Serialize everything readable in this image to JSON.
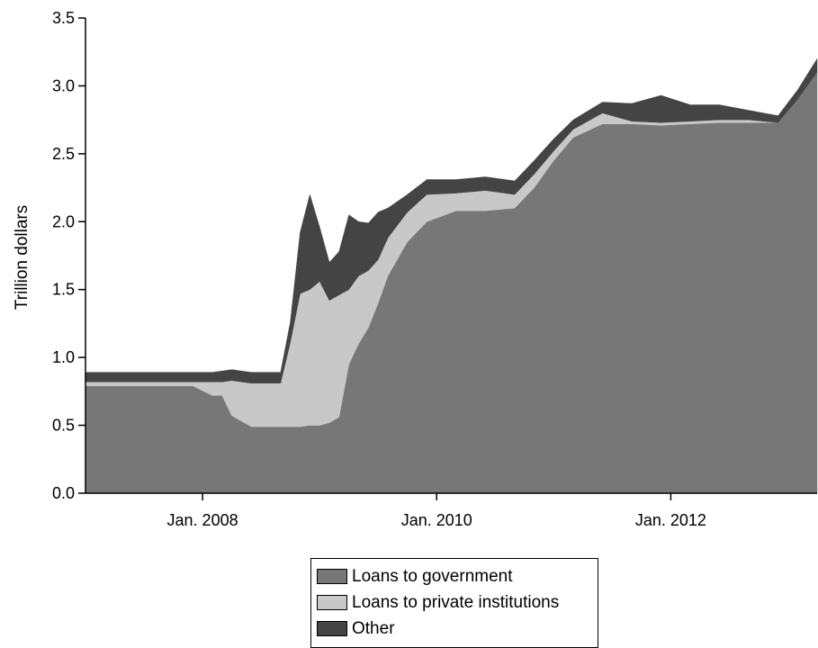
{
  "chart_data": {
    "type": "area",
    "stacked": true,
    "title": "",
    "ylabel": "Trillion dollars",
    "xlabel": "",
    "ylim": [
      0,
      3.5
    ],
    "xlim": [
      "2007-01",
      "2013-04"
    ],
    "yticks": [
      "0.0",
      "0.5",
      "1.0",
      "1.5",
      "2.0",
      "2.5",
      "3.0",
      "3.5"
    ],
    "xticks": [
      {
        "label": "Jan. 2008",
        "x": "2008-01"
      },
      {
        "label": "Jan. 2010",
        "x": "2010-01"
      },
      {
        "label": "Jan. 2012",
        "x": "2012-01"
      }
    ],
    "x": [
      "2007-01",
      "2007-06",
      "2007-12",
      "2008-02",
      "2008-03",
      "2008-04",
      "2008-06",
      "2008-09",
      "2008-10",
      "2008-11",
      "2008-12",
      "2009-01",
      "2009-02",
      "2009-03",
      "2009-04",
      "2009-05",
      "2009-06",
      "2009-07",
      "2009-08",
      "2009-10",
      "2009-12",
      "2010-03",
      "2010-06",
      "2010-09",
      "2010-11",
      "2011-01",
      "2011-03",
      "2011-06",
      "2011-09",
      "2011-12",
      "2012-03",
      "2012-06",
      "2012-09",
      "2012-12",
      "2013-02",
      "2013-04"
    ],
    "series": [
      {
        "name": "Loans to government",
        "color": "#777777",
        "values": [
          0.79,
          0.79,
          0.79,
          0.72,
          0.72,
          0.57,
          0.49,
          0.49,
          0.49,
          0.49,
          0.5,
          0.5,
          0.52,
          0.56,
          0.95,
          1.1,
          1.22,
          1.4,
          1.6,
          1.85,
          2.0,
          2.08,
          2.08,
          2.1,
          2.25,
          2.45,
          2.62,
          2.72,
          2.72,
          2.71,
          2.72,
          2.73,
          2.73,
          2.73,
          2.9,
          3.1
        ]
      },
      {
        "name": "Loans to private institutions",
        "color": "#c8c8c8",
        "values": [
          0.03,
          0.03,
          0.03,
          0.1,
          0.1,
          0.26,
          0.32,
          0.32,
          0.62,
          0.98,
          1.0,
          1.06,
          0.9,
          0.9,
          0.55,
          0.5,
          0.42,
          0.32,
          0.28,
          0.22,
          0.2,
          0.13,
          0.15,
          0.1,
          0.1,
          0.07,
          0.06,
          0.08,
          0.02,
          0.02,
          0.02,
          0.02,
          0.02,
          0.0,
          0.0,
          0.0
        ]
      },
      {
        "name": "Other",
        "color": "#444444",
        "values": [
          0.07,
          0.07,
          0.07,
          0.07,
          0.08,
          0.08,
          0.08,
          0.08,
          0.15,
          0.45,
          0.7,
          0.4,
          0.28,
          0.32,
          0.55,
          0.4,
          0.35,
          0.35,
          0.22,
          0.13,
          0.11,
          0.1,
          0.1,
          0.1,
          0.1,
          0.09,
          0.07,
          0.08,
          0.13,
          0.2,
          0.12,
          0.11,
          0.07,
          0.05,
          0.07,
          0.1
        ]
      }
    ],
    "legend_position": "bottom-center",
    "grid": false
  }
}
